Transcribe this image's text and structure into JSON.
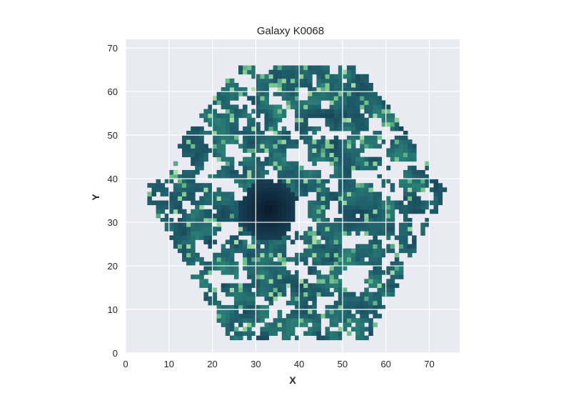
{
  "chart_data": {
    "type": "heatmap",
    "title": "Galaxy K0068",
    "xlabel": "X",
    "ylabel": "Y",
    "xlim": [
      0,
      77
    ],
    "ylim": [
      0,
      72
    ],
    "x_ticks": [
      0,
      10,
      20,
      30,
      40,
      50,
      60,
      70
    ],
    "y_ticks": [
      0,
      10,
      20,
      30,
      40,
      50,
      60,
      70
    ],
    "grid": true,
    "colormap": [
      "#f2f0d0",
      "#7fc98f",
      "#2f8a7a",
      "#1f5f6b",
      "#163c52",
      "#0b1a2a"
    ],
    "background_color": "#eaeaf2",
    "grid_color": "#ffffff",
    "hexagon": {
      "center": [
        39.5,
        36.5
      ],
      "vertices": [
        [
          26,
          66
        ],
        [
          54,
          66
        ],
        [
          74,
          37
        ],
        [
          56,
          3
        ],
        [
          24,
          3
        ],
        [
          4,
          37
        ]
      ]
    },
    "dark_core": {
      "center": [
        33,
        33
      ],
      "radius": 7
    },
    "holes": [
      [
        30,
        32,
        3,
        3
      ],
      [
        27,
        61,
        2,
        2
      ],
      [
        40,
        58,
        2,
        2
      ],
      [
        50,
        62,
        2,
        1.5
      ],
      [
        43,
        20,
        3,
        2
      ],
      [
        56,
        40,
        2,
        2
      ],
      [
        21,
        42,
        2.5,
        2
      ],
      [
        14,
        30,
        2,
        2
      ],
      [
        63,
        30,
        2,
        2
      ],
      [
        48,
        8,
        2.5,
        2
      ],
      [
        34,
        12,
        2,
        2
      ],
      [
        20,
        12,
        2,
        2
      ],
      [
        60,
        52,
        2,
        2
      ],
      [
        18,
        55,
        2,
        2
      ],
      [
        48,
        46,
        2,
        2
      ],
      [
        38,
        48,
        2.5,
        2
      ],
      [
        26,
        24,
        2,
        2
      ],
      [
        55,
        24,
        2,
        2
      ],
      [
        67,
        42,
        1.5,
        1.5
      ],
      [
        9,
        38,
        1.5,
        1.5
      ]
    ]
  }
}
